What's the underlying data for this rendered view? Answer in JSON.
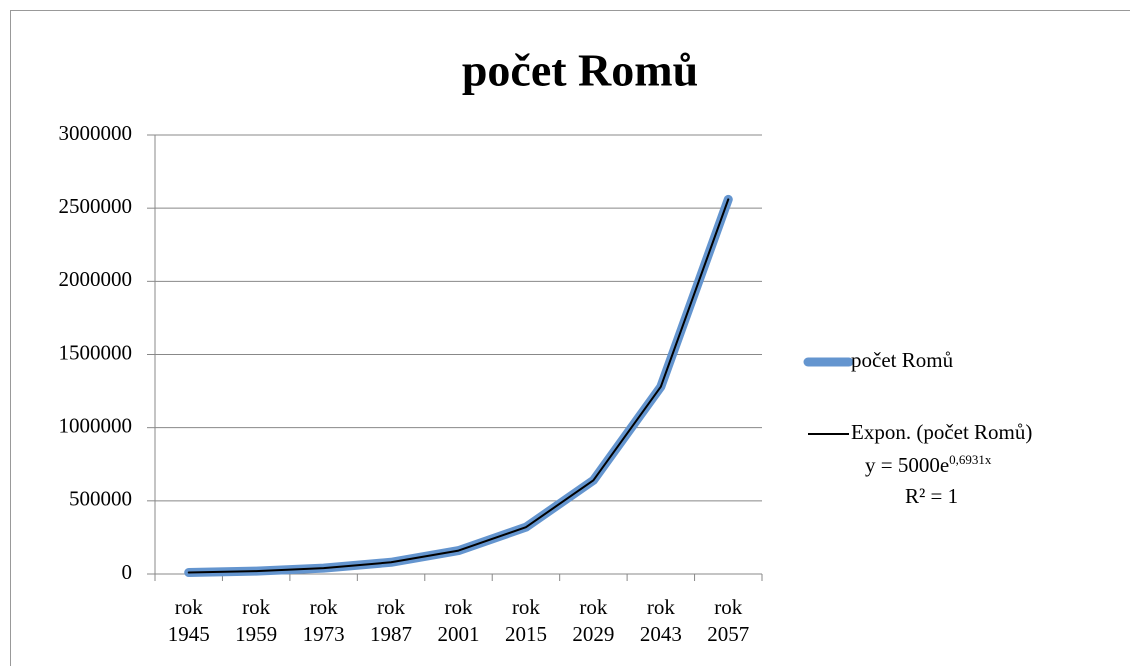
{
  "chart_data": {
    "type": "line",
    "title": "počet Romů",
    "categories": [
      "rok 1945",
      "rok 1959",
      "rok 1973",
      "rok 1987",
      "rok 2001",
      "rok 2015",
      "rok 2029",
      "rok 2043",
      "rok 2057"
    ],
    "series": [
      {
        "name": "počet Romů",
        "color": "#6495cf",
        "values": [
          10000,
          20000,
          40000,
          80000,
          160000,
          320000,
          640000,
          1280000,
          2560000
        ]
      },
      {
        "name": "Expon. (počet Romů)",
        "color": "#000000",
        "values": [
          10000,
          20000,
          40000,
          80000,
          160000,
          320000,
          640000,
          1280000,
          2560000
        ]
      }
    ],
    "equation": {
      "base": "y = 5000e",
      "exponent": "0,6931x"
    },
    "r_squared": "R² = 1",
    "ylim": [
      0,
      3000000
    ],
    "yticks": [
      0,
      500000,
      1000000,
      1500000,
      2000000,
      2500000,
      3000000
    ],
    "grid": true
  }
}
